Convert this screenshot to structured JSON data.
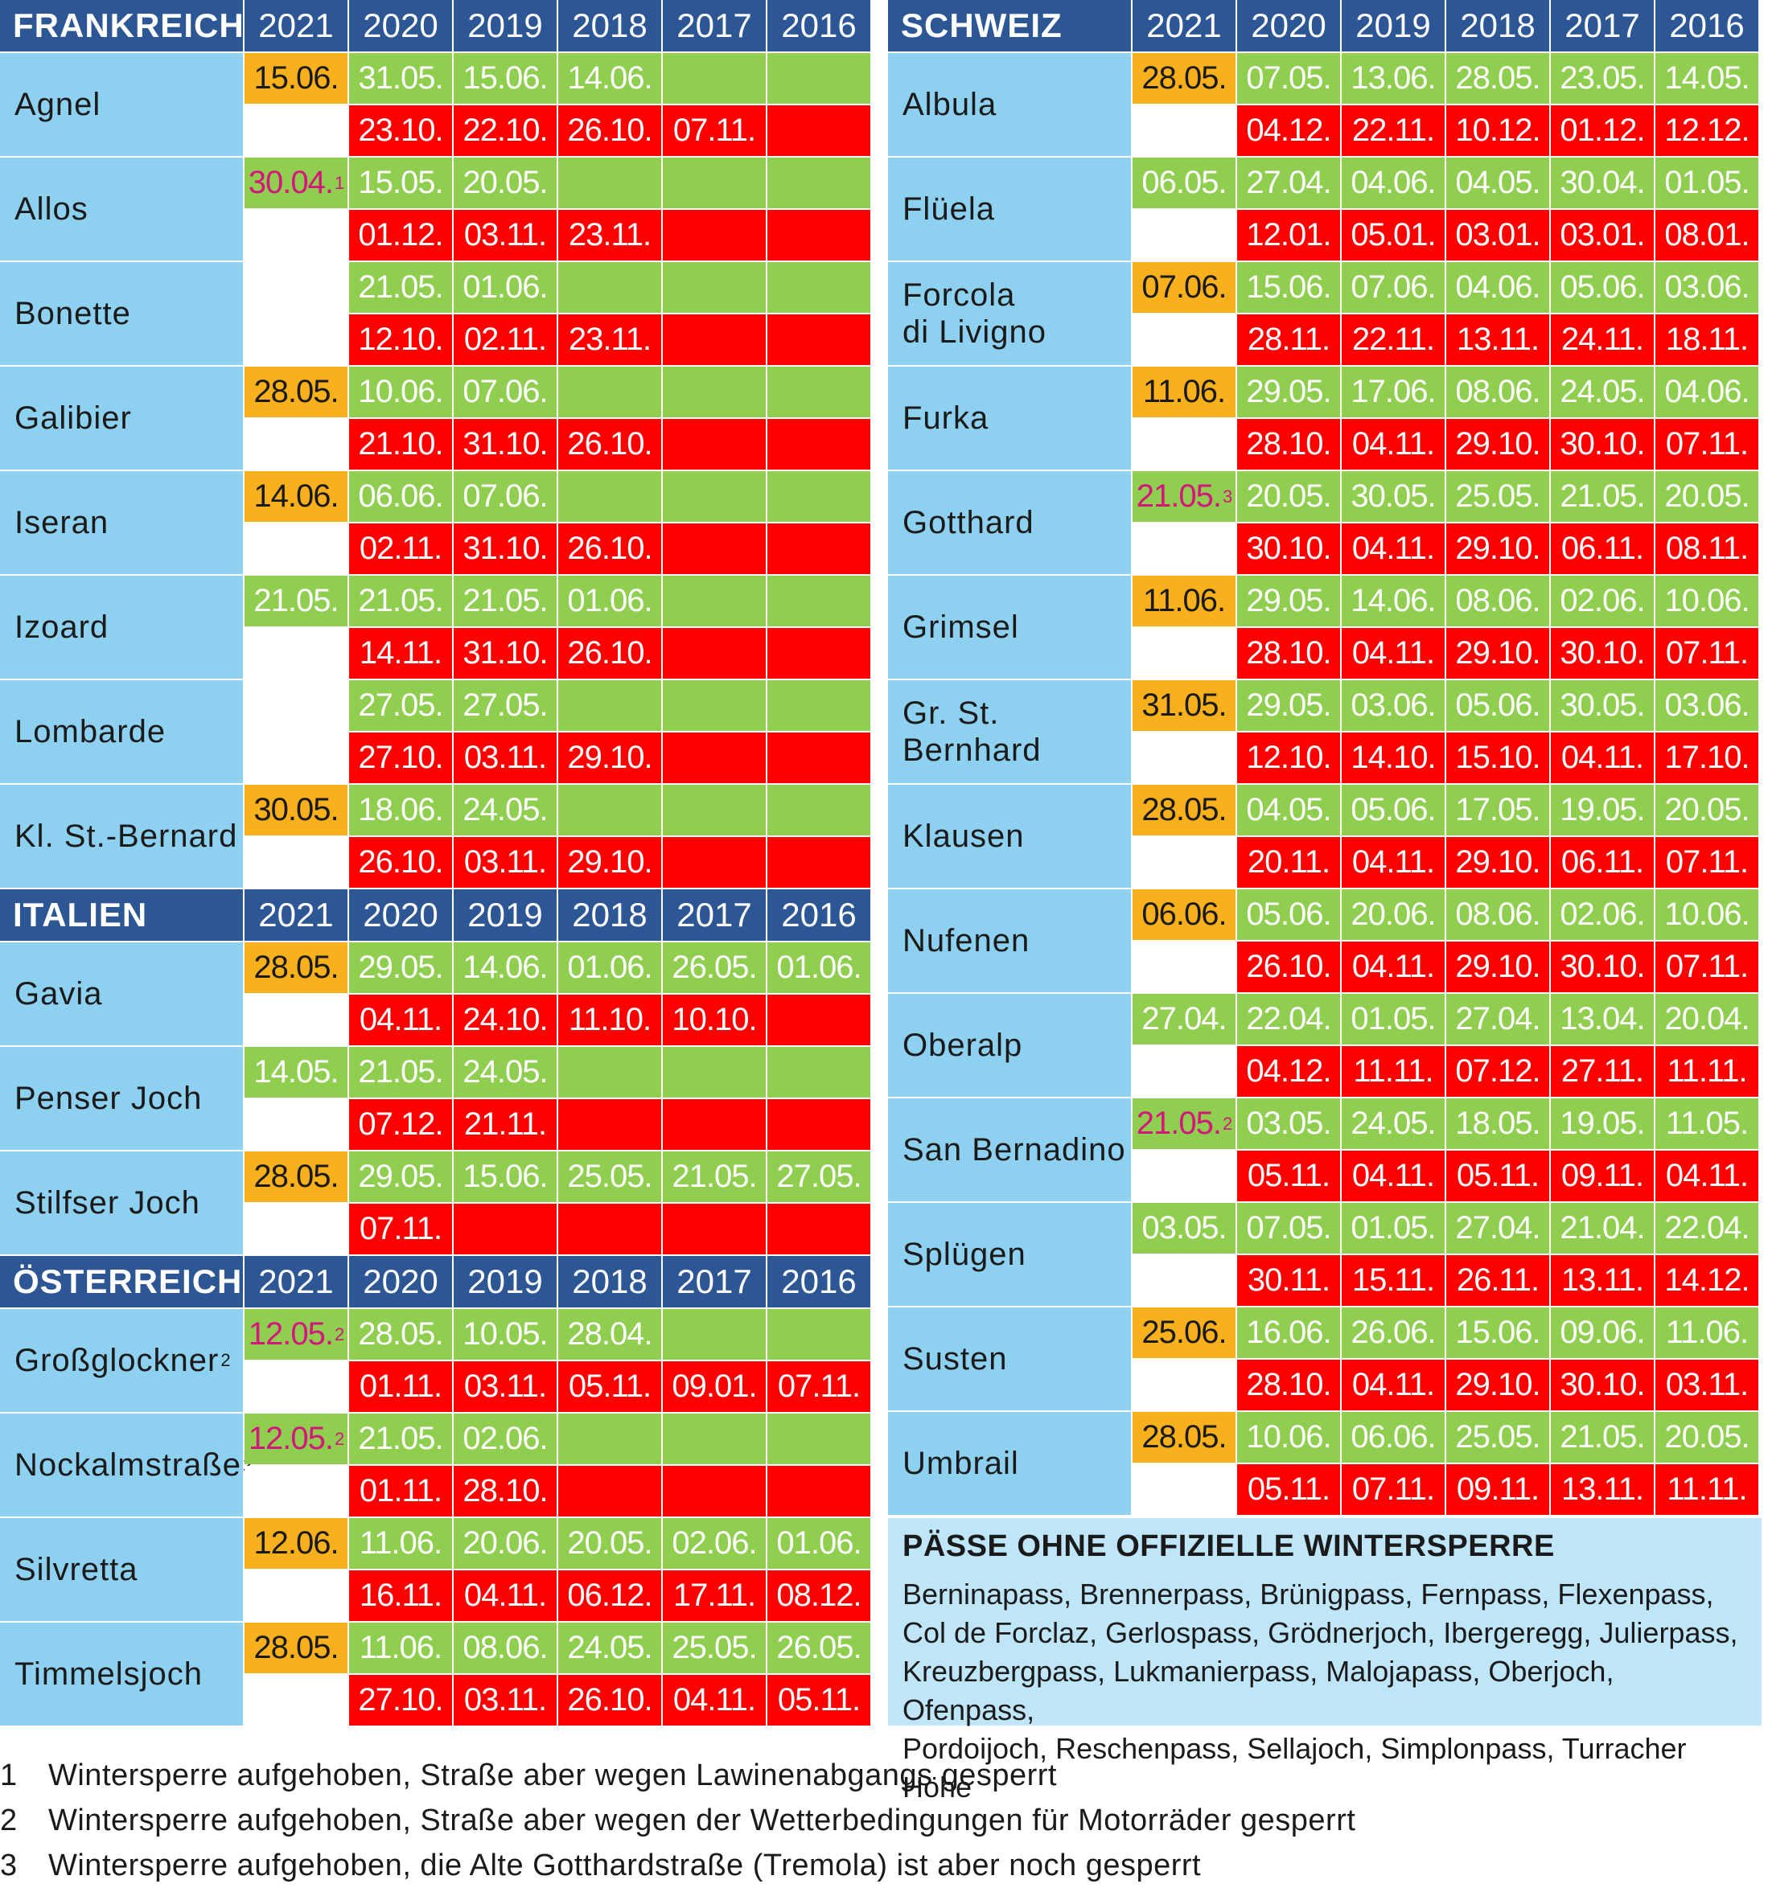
{
  "years": [
    "2021",
    "2020",
    "2019",
    "2018",
    "2017",
    "2016"
  ],
  "left": [
    {
      "type": "header",
      "title": "FRANKREICH"
    },
    {
      "type": "pass",
      "name": "Agnel",
      "y2021": {
        "text": "15.06.",
        "style": "orange"
      },
      "open": [
        "31.05.",
        "15.06.",
        "14.06.",
        "",
        ""
      ],
      "close": [
        "23.10.",
        "22.10.",
        "26.10.",
        "07.11.",
        ""
      ]
    },
    {
      "type": "pass",
      "name": "Allos",
      "y2021": {
        "text": "30.04.",
        "sup": "1",
        "style": "m21"
      },
      "open": [
        "15.05.",
        "20.05.",
        "",
        "",
        ""
      ],
      "close": [
        "01.12.",
        "03.11.",
        "23.11.",
        "",
        ""
      ]
    },
    {
      "type": "pass",
      "name": "Bonette",
      "y2021": {
        "text": "",
        "style": "empty"
      },
      "open": [
        "21.05.",
        "01.06.",
        "",
        "",
        ""
      ],
      "close": [
        "12.10.",
        "02.11.",
        "23.11.",
        "",
        ""
      ]
    },
    {
      "type": "pass",
      "name": "Galibier",
      "y2021": {
        "text": "28.05.",
        "style": "orange"
      },
      "open": [
        "10.06.",
        "07.06.",
        "",
        "",
        ""
      ],
      "close": [
        "21.10.",
        "31.10.",
        "26.10.",
        "",
        ""
      ]
    },
    {
      "type": "pass",
      "name": "Iseran",
      "y2021": {
        "text": "14.06.",
        "style": "orange"
      },
      "open": [
        "06.06.",
        "07.06.",
        "",
        "",
        ""
      ],
      "close": [
        "02.11.",
        "31.10.",
        "26.10.",
        "",
        ""
      ]
    },
    {
      "type": "pass",
      "name": "Izoard",
      "y2021": {
        "text": "21.05.",
        "style": "g21"
      },
      "open": [
        "21.05.",
        "21.05.",
        "01.06.",
        "",
        ""
      ],
      "close": [
        "14.11.",
        "31.10.",
        "26.10.",
        "",
        ""
      ]
    },
    {
      "type": "pass",
      "name": "Lombarde",
      "y2021": {
        "text": "",
        "style": "empty"
      },
      "open": [
        "27.05.",
        "27.05.",
        "",
        "",
        ""
      ],
      "close": [
        "27.10.",
        "03.11.",
        "29.10.",
        "",
        ""
      ]
    },
    {
      "type": "pass",
      "name": "Kl. St.-Bernard",
      "y2021": {
        "text": "30.05.",
        "style": "orange"
      },
      "open": [
        "18.06.",
        "24.05.",
        "",
        "",
        ""
      ],
      "close": [
        "26.10.",
        "03.11.",
        "29.10.",
        "",
        ""
      ]
    },
    {
      "type": "header",
      "title": "ITALIEN"
    },
    {
      "type": "pass",
      "name": "Gavia",
      "y2021": {
        "text": "28.05.",
        "style": "orange"
      },
      "open": [
        "29.05.",
        "14.06.",
        "01.06.",
        "26.05.",
        "01.06."
      ],
      "close": [
        "04.11.",
        "24.10.",
        "11.10.",
        "10.10.",
        ""
      ]
    },
    {
      "type": "pass",
      "name": "Penser Joch",
      "y2021": {
        "text": "14.05.",
        "style": "g21"
      },
      "open": [
        "21.05.",
        "24.05.",
        "",
        "",
        ""
      ],
      "close": [
        "07.12.",
        "21.11.",
        "",
        "",
        ""
      ]
    },
    {
      "type": "pass",
      "name": "Stilfser Joch",
      "y2021": {
        "text": "28.05.",
        "style": "orange"
      },
      "open": [
        "29.05.",
        "15.06.",
        "25.05.",
        "21.05.",
        "27.05."
      ],
      "close": [
        "07.11.",
        "",
        "",
        "",
        ""
      ]
    },
    {
      "type": "header",
      "title": "ÖSTERREICH"
    },
    {
      "type": "pass",
      "name": "Großglockner",
      "name_sup": "2",
      "y2021": {
        "text": "12.05.",
        "sup": "2",
        "style": "m21"
      },
      "open": [
        "28.05.",
        "10.05.",
        "28.04.",
        "",
        ""
      ],
      "close": [
        "01.11.",
        "03.11.",
        "05.11.",
        "09.01.",
        "07.11."
      ]
    },
    {
      "type": "pass",
      "name": "Nockalmstraße",
      "name_sup": "2",
      "y2021": {
        "text": "12.05.",
        "sup": "2",
        "style": "m21"
      },
      "open": [
        "21.05.",
        "02.06.",
        "",
        "",
        ""
      ],
      "close": [
        "01.11.",
        "28.10.",
        "",
        "",
        ""
      ]
    },
    {
      "type": "pass",
      "name": "Silvretta",
      "y2021": {
        "text": "12.06.",
        "style": "orange"
      },
      "open": [
        "11.06.",
        "20.06.",
        "20.05.",
        "02.06.",
        "01.06."
      ],
      "close": [
        "16.11.",
        "04.11.",
        "06.12.",
        "17.11.",
        "08.12."
      ]
    },
    {
      "type": "pass",
      "name": "Timmelsjoch",
      "y2021": {
        "text": "28.05.",
        "style": "orange"
      },
      "open": [
        "11.06.",
        "08.06.",
        "24.05.",
        "25.05.",
        "26.05."
      ],
      "close": [
        "27.10.",
        "03.11.",
        "26.10.",
        "04.11.",
        "05.11."
      ]
    }
  ],
  "right": [
    {
      "type": "header",
      "title": "SCHWEIZ"
    },
    {
      "type": "pass",
      "name": "Albula",
      "y2021": {
        "text": "28.05.",
        "style": "orange"
      },
      "open": [
        "07.05.",
        "13.06.",
        "28.05.",
        "23.05.",
        "14.05."
      ],
      "close": [
        "04.12.",
        "22.11.",
        "10.12.",
        "01.12.",
        "12.12."
      ]
    },
    {
      "type": "pass",
      "name": "Flüela",
      "y2021": {
        "text": "06.05.",
        "style": "g21"
      },
      "open": [
        "27.04.",
        "04.06.",
        "04.05.",
        "30.04.",
        "01.05."
      ],
      "close": [
        "12.01.",
        "05.01.",
        "03.01.",
        "03.01.",
        "08.01."
      ]
    },
    {
      "type": "pass",
      "name": "Forcola\ndi Livigno",
      "y2021": {
        "text": "07.06.",
        "style": "orange"
      },
      "open": [
        "15.06.",
        "07.06.",
        "04.06.",
        "05.06.",
        "03.06."
      ],
      "close": [
        "28.11.",
        "22.11.",
        "13.11.",
        "24.11.",
        "18.11."
      ]
    },
    {
      "type": "pass",
      "name": "Furka",
      "y2021": {
        "text": "11.06.",
        "style": "orange"
      },
      "open": [
        "29.05.",
        "17.06.",
        "08.06.",
        "24.05.",
        "04.06."
      ],
      "close": [
        "28.10.",
        "04.11.",
        "29.10.",
        "30.10.",
        "07.11."
      ]
    },
    {
      "type": "pass",
      "name": "Gotthard",
      "y2021": {
        "text": "21.05.",
        "sup": "3",
        "style": "m21"
      },
      "open": [
        "20.05.",
        "30.05.",
        "25.05.",
        "21.05.",
        "20.05."
      ],
      "close": [
        "30.10.",
        "04.11.",
        "29.10.",
        "06.11.",
        "08.11."
      ]
    },
    {
      "type": "pass",
      "name": "Grimsel",
      "y2021": {
        "text": "11.06.",
        "style": "orange"
      },
      "open": [
        "29.05.",
        "14.06.",
        "08.06.",
        "02.06.",
        "10.06."
      ],
      "close": [
        "28.10.",
        "04.11.",
        "29.10.",
        "30.10.",
        "07.11."
      ]
    },
    {
      "type": "pass",
      "name": "Gr. St. Bernhard",
      "y2021": {
        "text": "31.05.",
        "style": "orange"
      },
      "open": [
        "29.05.",
        "03.06.",
        "05.06.",
        "30.05.",
        "03.06."
      ],
      "close": [
        "12.10.",
        "14.10.",
        "15.10.",
        "04.11.",
        "17.10."
      ]
    },
    {
      "type": "pass",
      "name": "Klausen",
      "y2021": {
        "text": "28.05.",
        "style": "orange"
      },
      "open": [
        "04.05.",
        "05.06.",
        "17.05.",
        "19.05.",
        "20.05."
      ],
      "close": [
        "20.11.",
        "04.11.",
        "29.10.",
        "06.11.",
        "07.11."
      ]
    },
    {
      "type": "pass",
      "name": "Nufenen",
      "y2021": {
        "text": "06.06.",
        "style": "orange"
      },
      "open": [
        "05.06.",
        "20.06.",
        "08.06.",
        "02.06.",
        "10.06."
      ],
      "close": [
        "26.10.",
        "04.11.",
        "29.10.",
        "30.10.",
        "07.11."
      ]
    },
    {
      "type": "pass",
      "name": "Oberalp",
      "y2021": {
        "text": "27.04.",
        "style": "g21"
      },
      "open": [
        "22.04.",
        "01.05.",
        "27.04.",
        "13.04.",
        "20.04."
      ],
      "close": [
        "04.12.",
        "11.11.",
        "07.12.",
        "27.11.",
        "11.11."
      ]
    },
    {
      "type": "pass",
      "name": "San Bernadino",
      "y2021": {
        "text": "21.05.",
        "sup": "2",
        "style": "m21"
      },
      "open": [
        "03.05.",
        "24.05.",
        "18.05.",
        "19.05.",
        "11.05."
      ],
      "close": [
        "05.11.",
        "04.11.",
        "05.11.",
        "09.11.",
        "04.11."
      ]
    },
    {
      "type": "pass",
      "name": "Splügen",
      "y2021": {
        "text": "03.05.",
        "style": "g21"
      },
      "open": [
        "07.05.",
        "01.05.",
        "27.04.",
        "21.04.",
        "22.04."
      ],
      "close": [
        "30.11.",
        "15.11.",
        "26.11.",
        "13.11.",
        "14.12."
      ]
    },
    {
      "type": "pass",
      "name": "Susten",
      "y2021": {
        "text": "25.06.",
        "style": "orange"
      },
      "open": [
        "16.06.",
        "26.06.",
        "15.06.",
        "09.06.",
        "11.06."
      ],
      "close": [
        "28.10.",
        "04.11.",
        "29.10.",
        "30.10.",
        "03.11."
      ]
    },
    {
      "type": "pass",
      "name": "Umbrail",
      "y2021": {
        "text": "28.05.",
        "style": "orange"
      },
      "open": [
        "10.06.",
        "06.06.",
        "25.05.",
        "21.05.",
        "20.05."
      ],
      "close": [
        "05.11.",
        "07.11.",
        "09.11.",
        "13.11.",
        "11.11."
      ]
    }
  ],
  "no_closure": {
    "title": "PÄSSE OHNE OFFIZIELLE WINTERSPERRE",
    "lines": [
      "Berninapass, Brennerpass, Brünigpass, Fernpass, Flexenpass,",
      "Col de Forclaz, Gerlospass, Grödnerjoch, Ibergeregg, Julierpass,",
      "Kreuzbergpass, Lukmanierpass, Malojapass, Oberjoch, Ofenpass,",
      "Pordoijoch, Reschenpass, Sellajoch, Simplonpass, Turracher Höhe"
    ]
  },
  "footnotes": [
    {
      "num": "1",
      "text": "Wintersperre aufgehoben, Straße aber wegen Lawinenabgangs gesperrt"
    },
    {
      "num": "2",
      "text": "Wintersperre aufgehoben, Straße aber wegen der Wetterbedingungen für Motorräder gesperrt"
    },
    {
      "num": "3",
      "text": "Wintersperre aufgehoben, die Alte Gotthardstraße (Tremola) ist aber noch gesperrt"
    }
  ]
}
